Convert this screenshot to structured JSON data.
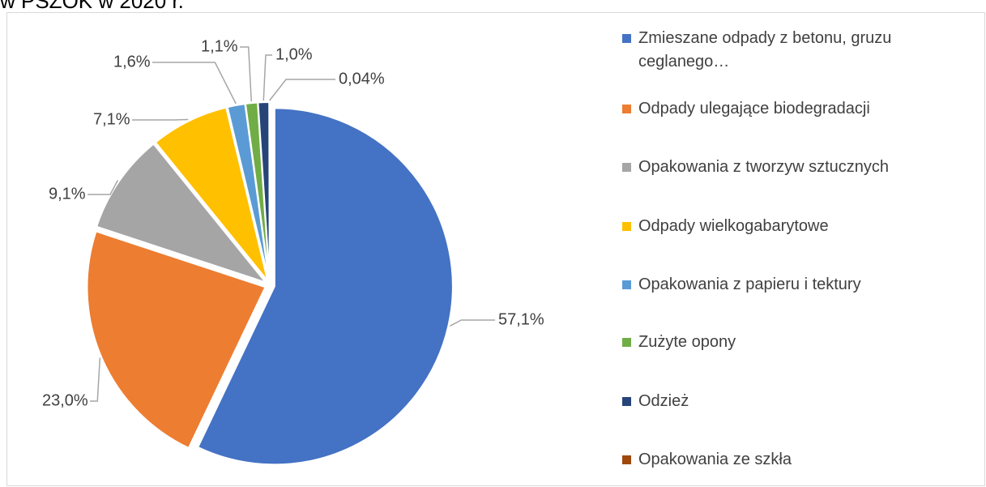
{
  "chart_data": {
    "type": "pie",
    "title": "w PSZOK w 2020 r.",
    "categories": [
      "Zmieszane odpady z betonu, gruzu ceglanego…",
      "Odpady ulegające biodegradacji",
      "Opakowania z tworzyw sztucznych",
      "Odpady wielkogabarytowe",
      "Opakowania z papieru i tektury",
      "Zużyte opony",
      "Odzież",
      "Opakowania ze szkła"
    ],
    "values": [
      57.1,
      23.0,
      9.1,
      7.1,
      1.6,
      1.1,
      1.0,
      0.04
    ],
    "value_labels": [
      "57,1%",
      "23,0%",
      "9,1%",
      "7,1%",
      "1,6%",
      "1,1%",
      "1,0%",
      "0,04%"
    ],
    "colors": [
      "#4472c4",
      "#ed7d31",
      "#a5a5a5",
      "#ffc000",
      "#5b9bd5",
      "#70ad47",
      "#264478",
      "#9e480e"
    ],
    "legend": "right"
  }
}
